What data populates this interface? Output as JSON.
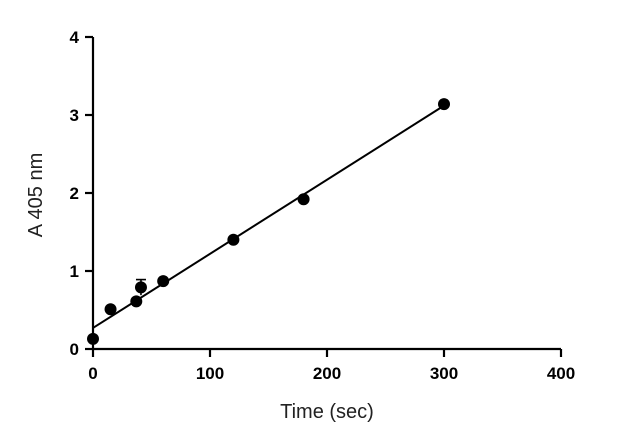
{
  "chart_data": {
    "type": "scatter",
    "title": "",
    "xlabel": "Time (sec)",
    "ylabel": "A 405 nm",
    "xlim": [
      0,
      400
    ],
    "ylim": [
      0,
      4
    ],
    "xticks": [
      0,
      100,
      200,
      300,
      400
    ],
    "yticks": [
      0,
      1,
      2,
      3,
      4
    ],
    "grid": false,
    "points": [
      {
        "x": 0,
        "y": 0.13
      },
      {
        "x": 15,
        "y": 0.51
      },
      {
        "x": 37,
        "y": 0.61
      },
      {
        "x": 41,
        "y": 0.79,
        "err": 0.1
      },
      {
        "x": 60,
        "y": 0.87
      },
      {
        "x": 120,
        "y": 1.4
      },
      {
        "x": 180,
        "y": 1.92
      },
      {
        "x": 300,
        "y": 3.14
      }
    ],
    "fit_line": {
      "x": [
        0,
        300
      ],
      "y": [
        0.27,
        3.12
      ]
    }
  }
}
